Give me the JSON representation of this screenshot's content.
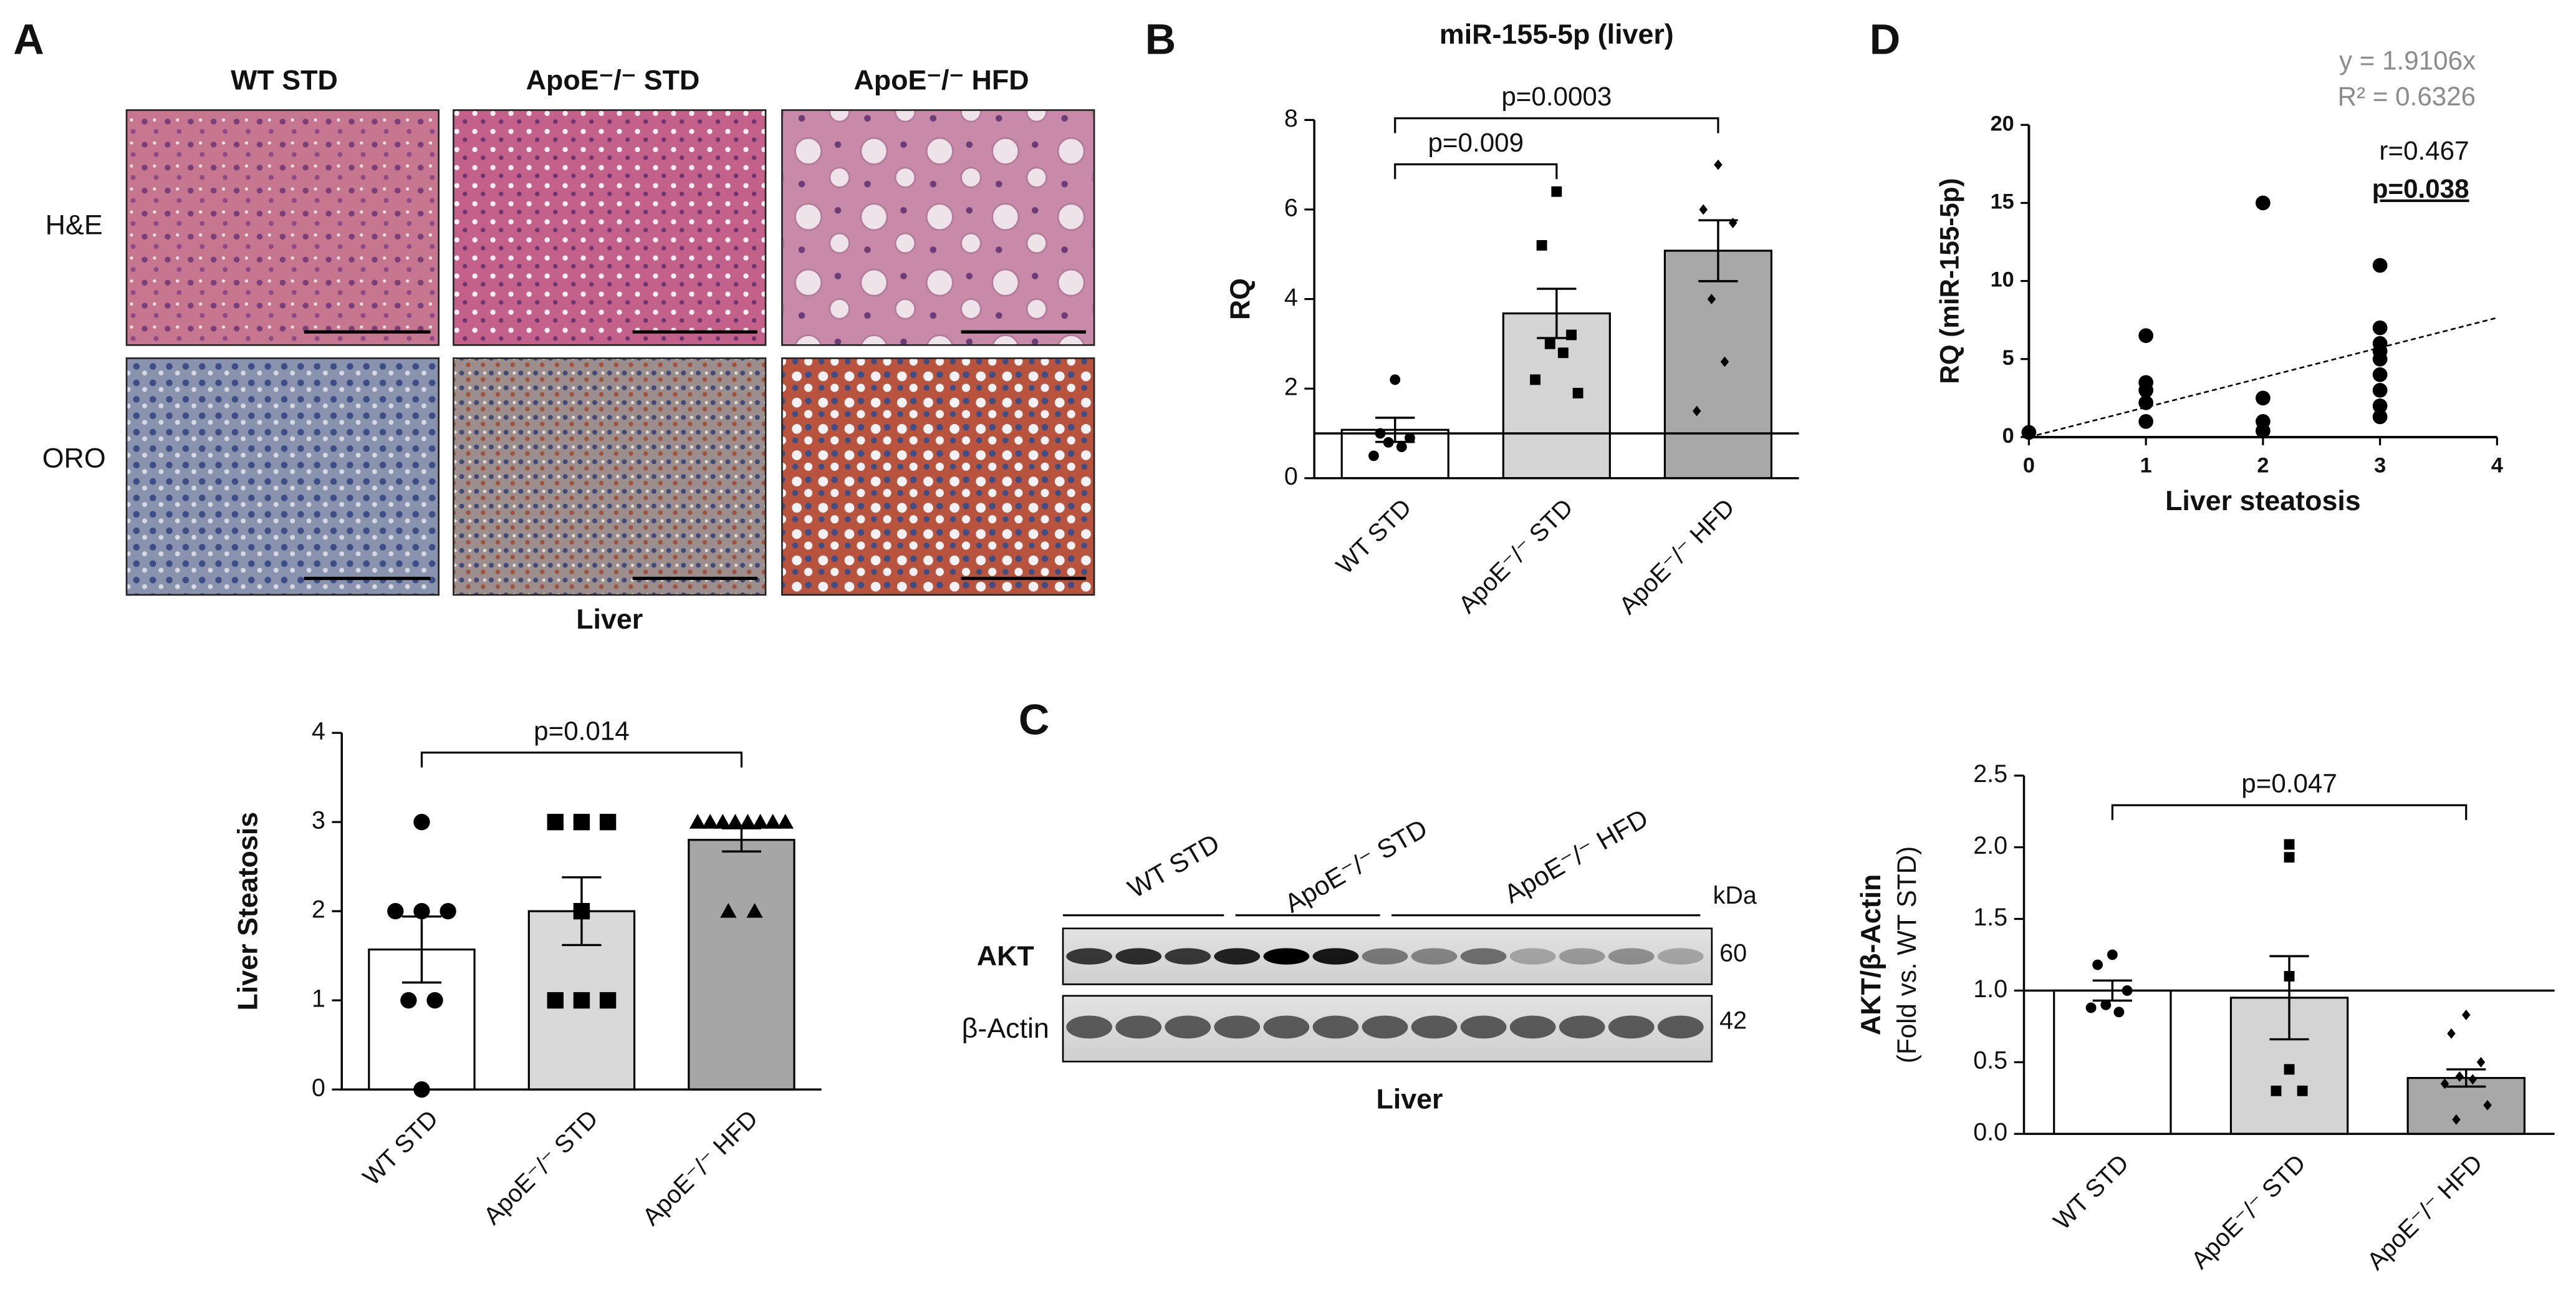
{
  "panel_labels": [
    "A",
    "B",
    "C",
    "D"
  ],
  "histology": {
    "columns": [
      "WT STD",
      "ApoE⁻/⁻ STD",
      "ApoE⁻/⁻ HFD"
    ],
    "rows": [
      "H&E",
      "ORO"
    ],
    "caption": "Liver"
  },
  "western_blot": {
    "groups": [
      "WT STD",
      "ApoE⁻/⁻ STD",
      "ApoE⁻/⁻ HFD"
    ],
    "bands": [
      "AKT",
      "β-Actin"
    ],
    "unit": "kDa",
    "sizes": [
      "60",
      "42"
    ],
    "caption": "Liver"
  },
  "chart_data": [
    {
      "type": "bar",
      "y_label": "Liver Steatosis",
      "categories": [
        "WT STD",
        "ApoE⁻/⁻ STD",
        "ApoE⁻/⁻ HFD"
      ],
      "values": [
        1.57,
        2.0,
        2.8
      ],
      "errors": [
        0.37,
        0.38,
        0.13
      ],
      "colors": [
        "#ffffff",
        "#d9d9d9",
        "#a6a6a6"
      ],
      "markers": [
        "circle",
        "square",
        "triangle"
      ],
      "points": [
        [
          3,
          2,
          2,
          2,
          1,
          1,
          0
        ],
        [
          3,
          3,
          3,
          2,
          1,
          1,
          1
        ],
        [
          3,
          3,
          3,
          3,
          3,
          3,
          3,
          3,
          2,
          2
        ]
      ],
      "ylim": [
        0,
        4
      ],
      "yticks": [
        0,
        1,
        2,
        3,
        4
      ],
      "annotations": [
        "p=0.014"
      ]
    },
    {
      "type": "bar",
      "title": "miR-155-5p (liver)",
      "y_label": "RQ",
      "categories": [
        "WT STD",
        "ApoE⁻/⁻ STD",
        "ApoE⁻/⁻ HFD"
      ],
      "values": [
        1.08,
        3.68,
        5.08
      ],
      "errors": [
        0.27,
        0.55,
        0.68
      ],
      "colors": [
        "#ffffff",
        "#d4d4d4",
        "#a8a8a8"
      ],
      "markers": [
        "circle",
        "square",
        "diamond"
      ],
      "points": [
        [
          2.2,
          1.0,
          0.9,
          0.8,
          0.7,
          0.5
        ],
        [
          6.4,
          5.2,
          3.2,
          3.0,
          2.8,
          2.2,
          1.9
        ],
        [
          7.0,
          6.0,
          5.7,
          4.0,
          2.6,
          1.5
        ]
      ],
      "reference_line": 1,
      "ylim": [
        0,
        8
      ],
      "yticks": [
        0,
        2,
        4,
        6,
        8
      ],
      "annotations": [
        "p=0.009",
        "p=0.0003"
      ]
    },
    {
      "type": "bar",
      "y_label": "AKT/β-Actin",
      "y_label_note": "(Fold vs. WT STD)",
      "categories": [
        "WT STD",
        "ApoE⁻/⁻ STD",
        "ApoE⁻/⁻ HFD"
      ],
      "values": [
        1.0,
        0.95,
        0.39
      ],
      "errors": [
        0.07,
        0.29,
        0.06
      ],
      "colors": [
        "#ffffff",
        "#d4d4d4",
        "#a8a8a8"
      ],
      "markers": [
        "circle",
        "square",
        "diamond"
      ],
      "points": [
        [
          1.25,
          1.18,
          1.0,
          0.9,
          0.85,
          0.88
        ],
        [
          2.02,
          1.93,
          1.1,
          0.45,
          0.3,
          0.3
        ],
        [
          0.83,
          0.7,
          0.5,
          0.4,
          0.38,
          0.35,
          0.2,
          0.1
        ]
      ],
      "reference_line": 1,
      "ylim": [
        0,
        2.5
      ],
      "yticks": [
        {
          "value": 0,
          "label": "0.0"
        },
        {
          "value": 0.5,
          "label": "0.5"
        },
        {
          "value": 1,
          "label": "1.0"
        },
        {
          "value": 1.5,
          "label": "1.5"
        },
        {
          "value": 2,
          "label": "2.0"
        },
        {
          "value": 2.5,
          "label": "2.5"
        }
      ],
      "annotations": [
        "p=0.047"
      ]
    },
    {
      "type": "scatter",
      "x_label": "Liver steatosis",
      "y_label": "RQ (miR-155-5p)",
      "x": [
        0,
        1,
        1,
        1,
        1,
        1,
        2,
        2,
        2,
        2,
        3,
        3,
        3,
        3,
        3,
        3,
        3,
        3,
        3
      ],
      "y": [
        0.3,
        6.5,
        3.5,
        3.0,
        2.2,
        1.0,
        15,
        2.5,
        1.0,
        0.4,
        11,
        7,
        6,
        5.5,
        5,
        4,
        3,
        2,
        1.3
      ],
      "color": "#000000",
      "trendline": {
        "value": 1.9106,
        "label": "y = 1.9106x"
      },
      "annotations": [
        "R² = 0.6326",
        "r=0.467",
        "p=0.038"
      ],
      "xlim": [
        0,
        4
      ],
      "xticks": [
        0,
        1,
        2,
        3,
        4
      ],
      "ylim": [
        0,
        20
      ],
      "yticks": [
        0,
        5,
        10,
        15,
        20
      ]
    }
  ]
}
